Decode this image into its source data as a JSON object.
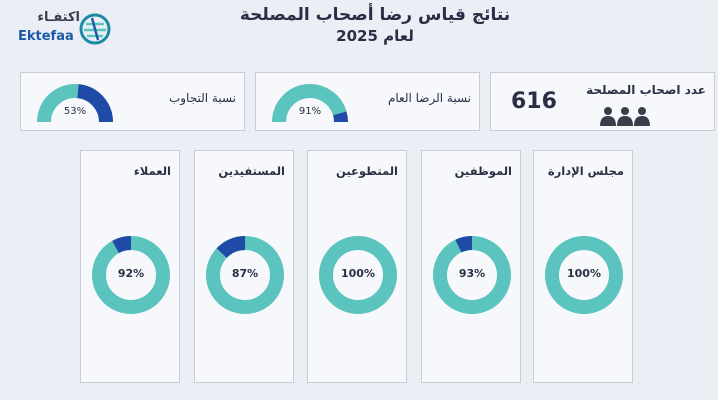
{
  "header": {
    "title_line1": "نتائج قياس رضا أصحاب المصلحة",
    "title_line2": "لعام 2025"
  },
  "logo": {
    "arabic": "اكتفـاء",
    "english": "Ektefaa",
    "icon": "ektefaa-logo-mark"
  },
  "colors": {
    "teal": "#5cc4be",
    "navy": "#1f4aa6",
    "card_bg": "#f7f8fb",
    "page_bg": "#eceef5"
  },
  "kpis": {
    "stakeholders": {
      "label": "عدد اصحاب المصلحة",
      "value": "616",
      "icon": "people-icon"
    },
    "overall_satisfaction": {
      "label": "نسبة الرضا العام",
      "value_text": "91%",
      "percent": 91
    },
    "response_rate": {
      "label": "نسبة التجاوب",
      "value_text": "53%",
      "percent": 53
    }
  },
  "categories": [
    {
      "label": "مجلس الإدارة",
      "value_text": "100%",
      "percent": 100
    },
    {
      "label": "الموظفين",
      "value_text": "93%",
      "percent": 93
    },
    {
      "label": "المتطوعين",
      "value_text": "100%",
      "percent": 100
    },
    {
      "label": "المستفيدين",
      "value_text": "87%",
      "percent": 87
    },
    {
      "label": "العملاء",
      "value_text": "92%",
      "percent": 92
    }
  ]
}
